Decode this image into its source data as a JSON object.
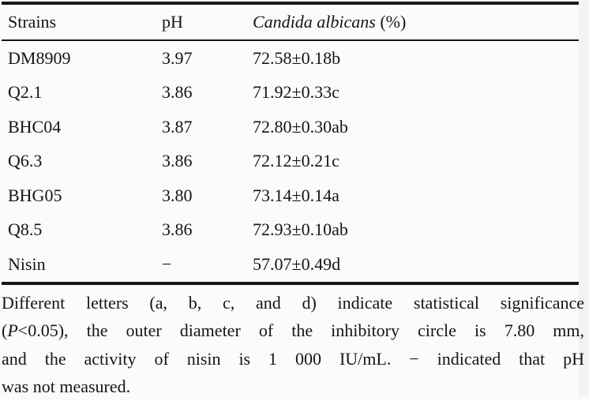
{
  "table": {
    "header": {
      "strains": "Strains",
      "ph": "pH",
      "candida_italic": "Candida albicans",
      "candida_suffix": " (%)"
    },
    "rows": [
      {
        "strain": "DM8909",
        "ph": "3.97",
        "value": "72.58±0.18b"
      },
      {
        "strain": "Q2.1",
        "ph": "3.86",
        "value": "71.92±0.33c"
      },
      {
        "strain": "BHC04",
        "ph": "3.87",
        "value": "72.80±0.30ab"
      },
      {
        "strain": "Q6.3",
        "ph": "3.86",
        "value": "72.12±0.21c"
      },
      {
        "strain": "BHG05",
        "ph": "3.80",
        "value": "73.14±0.14a"
      },
      {
        "strain": "Q8.5",
        "ph": "3.86",
        "value": "72.93±0.10ab"
      },
      {
        "strain": "Nisin",
        "ph": "−",
        "value": "57.07±0.49d"
      }
    ]
  },
  "footnote": {
    "line1": "Different letters (a, b, c, and d) indicate statistical significance",
    "line2_open": "(",
    "line2_italic": "P",
    "line2_rest": "<0.05), the outer diameter of the inhibitory circle is 7.80 mm,",
    "line3": "and the activity of nisin is 1 000 IU/mL. − indicated that pH",
    "line4": "was not measured."
  },
  "colors": {
    "background": "#fbfbfb",
    "edge_strip": "#f3f3f3",
    "rule": "#181818",
    "text": "#151515"
  }
}
